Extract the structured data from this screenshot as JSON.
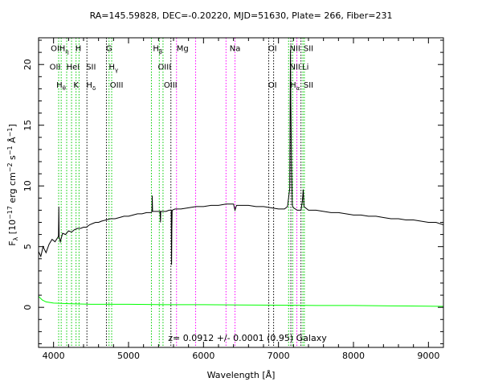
{
  "chart_data": {
    "type": "line",
    "title": "RA=145.59828, DEC=-0.20220, MJD=51630, Plate= 266, Fiber=231",
    "xlabel": "Wavelength [Å]",
    "ylabel_parts": {
      "pre": "F",
      "sub": "λ",
      "mid1": " [10",
      "exp1": "−17",
      "mid2": " erg cm",
      "exp2": "−2",
      "mid3": " s",
      "exp3": "−1",
      "mid4": " Å",
      "exp4": "−1",
      "post": "]"
    },
    "xlim": [
      3800,
      9200
    ],
    "ylim": [
      -3.3,
      22.2
    ],
    "x_ticks": [
      4000,
      5000,
      6000,
      7000,
      8000,
      9000
    ],
    "y_ticks": [
      0,
      5,
      10,
      15,
      20
    ],
    "annotation": "z= 0.0912 +/- 0.0001 (0.95)  Galaxy",
    "series": [
      {
        "color": "#000000",
        "points": [
          [
            3800,
            4.6
          ],
          [
            3830,
            4.2
          ],
          [
            3860,
            5.0
          ],
          [
            3900,
            4.5
          ],
          [
            3940,
            5.2
          ],
          [
            3980,
            5.6
          ],
          [
            4020,
            5.4
          ],
          [
            4060,
            5.8
          ],
          [
            4066,
            5.9
          ],
          [
            4070,
            8.3
          ],
          [
            4074,
            5.8
          ],
          [
            4090,
            5.4
          ],
          [
            4120,
            6.1
          ],
          [
            4160,
            6.0
          ],
          [
            4200,
            6.3
          ],
          [
            4240,
            6.2
          ],
          [
            4280,
            6.4
          ],
          [
            4320,
            6.5
          ],
          [
            4360,
            6.5
          ],
          [
            4400,
            6.6
          ],
          [
            4440,
            6.6
          ],
          [
            4480,
            6.8
          ],
          [
            4520,
            6.9
          ],
          [
            4560,
            7.0
          ],
          [
            4600,
            7.0
          ],
          [
            4640,
            7.1
          ],
          [
            4700,
            7.2
          ],
          [
            4760,
            7.3
          ],
          [
            4820,
            7.3
          ],
          [
            4880,
            7.4
          ],
          [
            4940,
            7.5
          ],
          [
            5000,
            7.5
          ],
          [
            5060,
            7.6
          ],
          [
            5120,
            7.7
          ],
          [
            5180,
            7.7
          ],
          [
            5240,
            7.8
          ],
          [
            5300,
            7.8
          ],
          [
            5313,
            7.9
          ],
          [
            5316,
            9.2
          ],
          [
            5320,
            7.9
          ],
          [
            5360,
            7.9
          ],
          [
            5400,
            7.9
          ],
          [
            5420,
            7.9
          ],
          [
            5426,
            7.0
          ],
          [
            5430,
            7.9
          ],
          [
            5460,
            7.9
          ],
          [
            5500,
            7.9
          ],
          [
            5540,
            8.0
          ],
          [
            5570,
            8.0
          ],
          [
            5574,
            3.5
          ],
          [
            5578,
            6.4
          ],
          [
            5582,
            8.0
          ],
          [
            5620,
            8.1
          ],
          [
            5700,
            8.1
          ],
          [
            5800,
            8.2
          ],
          [
            5900,
            8.3
          ],
          [
            6000,
            8.3
          ],
          [
            6100,
            8.4
          ],
          [
            6200,
            8.4
          ],
          [
            6300,
            8.5
          ],
          [
            6400,
            8.5
          ],
          [
            6420,
            8.0
          ],
          [
            6440,
            8.4
          ],
          [
            6500,
            8.4
          ],
          [
            6600,
            8.4
          ],
          [
            6700,
            8.3
          ],
          [
            6800,
            8.3
          ],
          [
            6900,
            8.2
          ],
          [
            7000,
            8.1
          ],
          [
            7080,
            8.1
          ],
          [
            7120,
            8.3
          ],
          [
            7150,
            9.8
          ],
          [
            7160,
            21.2
          ],
          [
            7164,
            17.0
          ],
          [
            7175,
            11.3
          ],
          [
            7185,
            8.4
          ],
          [
            7200,
            8.2
          ],
          [
            7250,
            8.0
          ],
          [
            7300,
            8.0
          ],
          [
            7318,
            8.7
          ],
          [
            7330,
            9.7
          ],
          [
            7340,
            8.3
          ],
          [
            7400,
            8.0
          ],
          [
            7500,
            8.0
          ],
          [
            7600,
            7.9
          ],
          [
            7700,
            7.8
          ],
          [
            7800,
            7.8
          ],
          [
            7900,
            7.7
          ],
          [
            8000,
            7.6
          ],
          [
            8100,
            7.6
          ],
          [
            8200,
            7.5
          ],
          [
            8300,
            7.5
          ],
          [
            8400,
            7.4
          ],
          [
            8500,
            7.3
          ],
          [
            8600,
            7.3
          ],
          [
            8700,
            7.2
          ],
          [
            8800,
            7.2
          ],
          [
            8900,
            7.1
          ],
          [
            9000,
            7.0
          ],
          [
            9100,
            7.0
          ],
          [
            9200,
            6.8
          ]
        ]
      },
      {
        "color": "#00ff00",
        "points": [
          [
            3800,
            0.9
          ],
          [
            3850,
            0.6
          ],
          [
            3900,
            0.45
          ],
          [
            4000,
            0.35
          ],
          [
            4200,
            0.3
          ],
          [
            4500,
            0.25
          ],
          [
            5000,
            0.25
          ],
          [
            5500,
            0.22
          ],
          [
            6000,
            0.22
          ],
          [
            6500,
            0.2
          ],
          [
            7000,
            0.18
          ],
          [
            7500,
            0.15
          ],
          [
            8000,
            0.15
          ],
          [
            8500,
            0.12
          ],
          [
            9000,
            0.1
          ],
          [
            9200,
            0.08
          ]
        ]
      }
    ],
    "lines": [
      {
        "x": 4068,
        "color": "#00cc00",
        "style": "dot"
      },
      {
        "x": 4102,
        "color": "#00cc00",
        "style": "dot"
      },
      {
        "x": 4175,
        "color": "#00cc00",
        "style": "dot"
      },
      {
        "x": 4240,
        "color": "#00cc00",
        "style": "dot"
      },
      {
        "x": 4300,
        "color": "#00cc00",
        "style": "dot"
      },
      {
        "x": 4340,
        "color": "#00cc00",
        "style": "dot"
      },
      {
        "x": 4445,
        "color": "#000000",
        "style": "dot"
      },
      {
        "x": 4705,
        "color": "#000000",
        "style": "dot"
      },
      {
        "x": 4740,
        "color": "#00cc00",
        "style": "dot"
      },
      {
        "x": 4775,
        "color": "#00cc00",
        "style": "dot"
      },
      {
        "x": 5305,
        "color": "#00cc00",
        "style": "dot"
      },
      {
        "x": 5410,
        "color": "#00cc00",
        "style": "dot"
      },
      {
        "x": 5460,
        "color": "#00cc00",
        "style": "dot"
      },
      {
        "x": 5565,
        "color": "#000000",
        "style": "dot"
      },
      {
        "x": 5640,
        "color": "#ff00ff",
        "style": "dot"
      },
      {
        "x": 5895,
        "color": "#ff00ff",
        "style": "dot"
      },
      {
        "x": 6300,
        "color": "#ff00ff",
        "style": "dot"
      },
      {
        "x": 6420,
        "color": "#ff00ff",
        "style": "dot"
      },
      {
        "x": 6870,
        "color": "#000000",
        "style": "dot"
      },
      {
        "x": 6935,
        "color": "#000000",
        "style": "dot"
      },
      {
        "x": 7135,
        "color": "#00cc00",
        "style": "dot"
      },
      {
        "x": 7165,
        "color": "#000000",
        "style": "dot"
      },
      {
        "x": 7190,
        "color": "#00cc00",
        "style": "dot"
      },
      {
        "x": 7245,
        "color": "#ff00ff",
        "style": "dot"
      },
      {
        "x": 7300,
        "color": "#000000",
        "style": "dot"
      },
      {
        "x": 7325,
        "color": "#00cc00",
        "style": "dot"
      },
      {
        "x": 7345,
        "color": "#00cc00",
        "style": "dot"
      }
    ],
    "labels": [
      {
        "x": 4020,
        "y": 21.1,
        "parts": [
          {
            "t": "OI"
          }
        ]
      },
      {
        "x": 4140,
        "y": 21.1,
        "parts": [
          {
            "t": "H"
          },
          {
            "t": "η",
            "sub": true
          }
        ]
      },
      {
        "x": 4330,
        "y": 21.1,
        "parts": [
          {
            "t": "H"
          }
        ]
      },
      {
        "x": 4020,
        "y": 19.6,
        "parts": [
          {
            "t": "OII"
          }
        ]
      },
      {
        "x": 4260,
        "y": 19.6,
        "parts": [
          {
            "t": "HeI"
          }
        ]
      },
      {
        "x": 4500,
        "y": 19.6,
        "parts": [
          {
            "t": "SII"
          }
        ]
      },
      {
        "x": 4100,
        "y": 18.1,
        "parts": [
          {
            "t": "H"
          },
          {
            "t": "θ",
            "sub": true
          }
        ]
      },
      {
        "x": 4300,
        "y": 18.1,
        "parts": [
          {
            "t": "K"
          }
        ]
      },
      {
        "x": 4500,
        "y": 18.1,
        "parts": [
          {
            "t": "H"
          },
          {
            "t": "δ",
            "sub": true
          }
        ]
      },
      {
        "x": 4740,
        "y": 21.1,
        "parts": [
          {
            "t": "G"
          }
        ]
      },
      {
        "x": 4800,
        "y": 19.6,
        "parts": [
          {
            "t": "H"
          },
          {
            "t": "γ",
            "sub": true
          }
        ]
      },
      {
        "x": 4840,
        "y": 18.1,
        "parts": [
          {
            "t": "OIII"
          }
        ]
      },
      {
        "x": 5390,
        "y": 21.1,
        "parts": [
          {
            "t": "H"
          },
          {
            "t": "β",
            "sub": true
          }
        ]
      },
      {
        "x": 5480,
        "y": 19.6,
        "parts": [
          {
            "t": "OIII"
          }
        ]
      },
      {
        "x": 5560,
        "y": 18.1,
        "parts": [
          {
            "t": "OIII"
          }
        ]
      },
      {
        "x": 5720,
        "y": 21.1,
        "parts": [
          {
            "t": "Mg"
          }
        ]
      },
      {
        "x": 6420,
        "y": 21.1,
        "parts": [
          {
            "t": "Na"
          }
        ]
      },
      {
        "x": 6920,
        "y": 21.1,
        "parts": [
          {
            "t": "OI"
          }
        ]
      },
      {
        "x": 6920,
        "y": 18.1,
        "parts": [
          {
            "t": "OI"
          }
        ]
      },
      {
        "x": 7220,
        "y": 21.1,
        "parts": [
          {
            "t": "NII"
          }
        ]
      },
      {
        "x": 7400,
        "y": 21.1,
        "parts": [
          {
            "t": "SII"
          }
        ]
      },
      {
        "x": 7220,
        "y": 19.6,
        "parts": [
          {
            "t": "NII"
          }
        ]
      },
      {
        "x": 7360,
        "y": 19.6,
        "parts": [
          {
            "t": "Li"
          }
        ]
      },
      {
        "x": 7220,
        "y": 18.1,
        "parts": [
          {
            "t": "H"
          },
          {
            "t": "α",
            "sub": true
          }
        ]
      },
      {
        "x": 7400,
        "y": 18.1,
        "parts": [
          {
            "t": "SII"
          }
        ]
      }
    ]
  }
}
